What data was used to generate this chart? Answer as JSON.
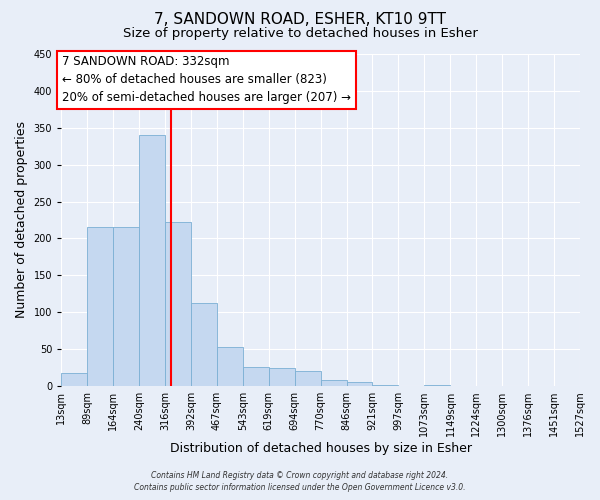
{
  "title": "7, SANDOWN ROAD, ESHER, KT10 9TT",
  "subtitle": "Size of property relative to detached houses in Esher",
  "bar_values": [
    18,
    215,
    215,
    340,
    222,
    113,
    53,
    26,
    25,
    20,
    8,
    5,
    1,
    0,
    1,
    0,
    0,
    0,
    0,
    0
  ],
  "bin_labels": [
    "13sqm",
    "89sqm",
    "164sqm",
    "240sqm",
    "316sqm",
    "392sqm",
    "467sqm",
    "543sqm",
    "619sqm",
    "694sqm",
    "770sqm",
    "846sqm",
    "921sqm",
    "997sqm",
    "1073sqm",
    "1149sqm",
    "1224sqm",
    "1300sqm",
    "1376sqm",
    "1451sqm",
    "1527sqm"
  ],
  "bin_edges": [
    13,
    89,
    164,
    240,
    316,
    392,
    467,
    543,
    619,
    694,
    770,
    846,
    921,
    997,
    1073,
    1149,
    1224,
    1300,
    1376,
    1451,
    1527
  ],
  "bar_color": "#c5d8f0",
  "bar_edgecolor": "#7bafd4",
  "vline_x": 332,
  "vline_color": "red",
  "xlabel": "Distribution of detached houses by size in Esher",
  "ylabel": "Number of detached properties",
  "ylim": [
    0,
    450
  ],
  "yticks": [
    0,
    50,
    100,
    150,
    200,
    250,
    300,
    350,
    400,
    450
  ],
  "annotation_title": "7 SANDOWN ROAD: 332sqm",
  "annotation_line1": "← 80% of detached houses are smaller (823)",
  "annotation_line2": "20% of semi-detached houses are larger (207) →",
  "footer1": "Contains HM Land Registry data © Crown copyright and database right 2024.",
  "footer2": "Contains public sector information licensed under the Open Government Licence v3.0.",
  "bg_color": "#e8eef8",
  "grid_color": "white",
  "title_fontsize": 11,
  "subtitle_fontsize": 9.5,
  "label_fontsize": 9,
  "tick_fontsize": 7,
  "annot_fontsize": 8.5
}
